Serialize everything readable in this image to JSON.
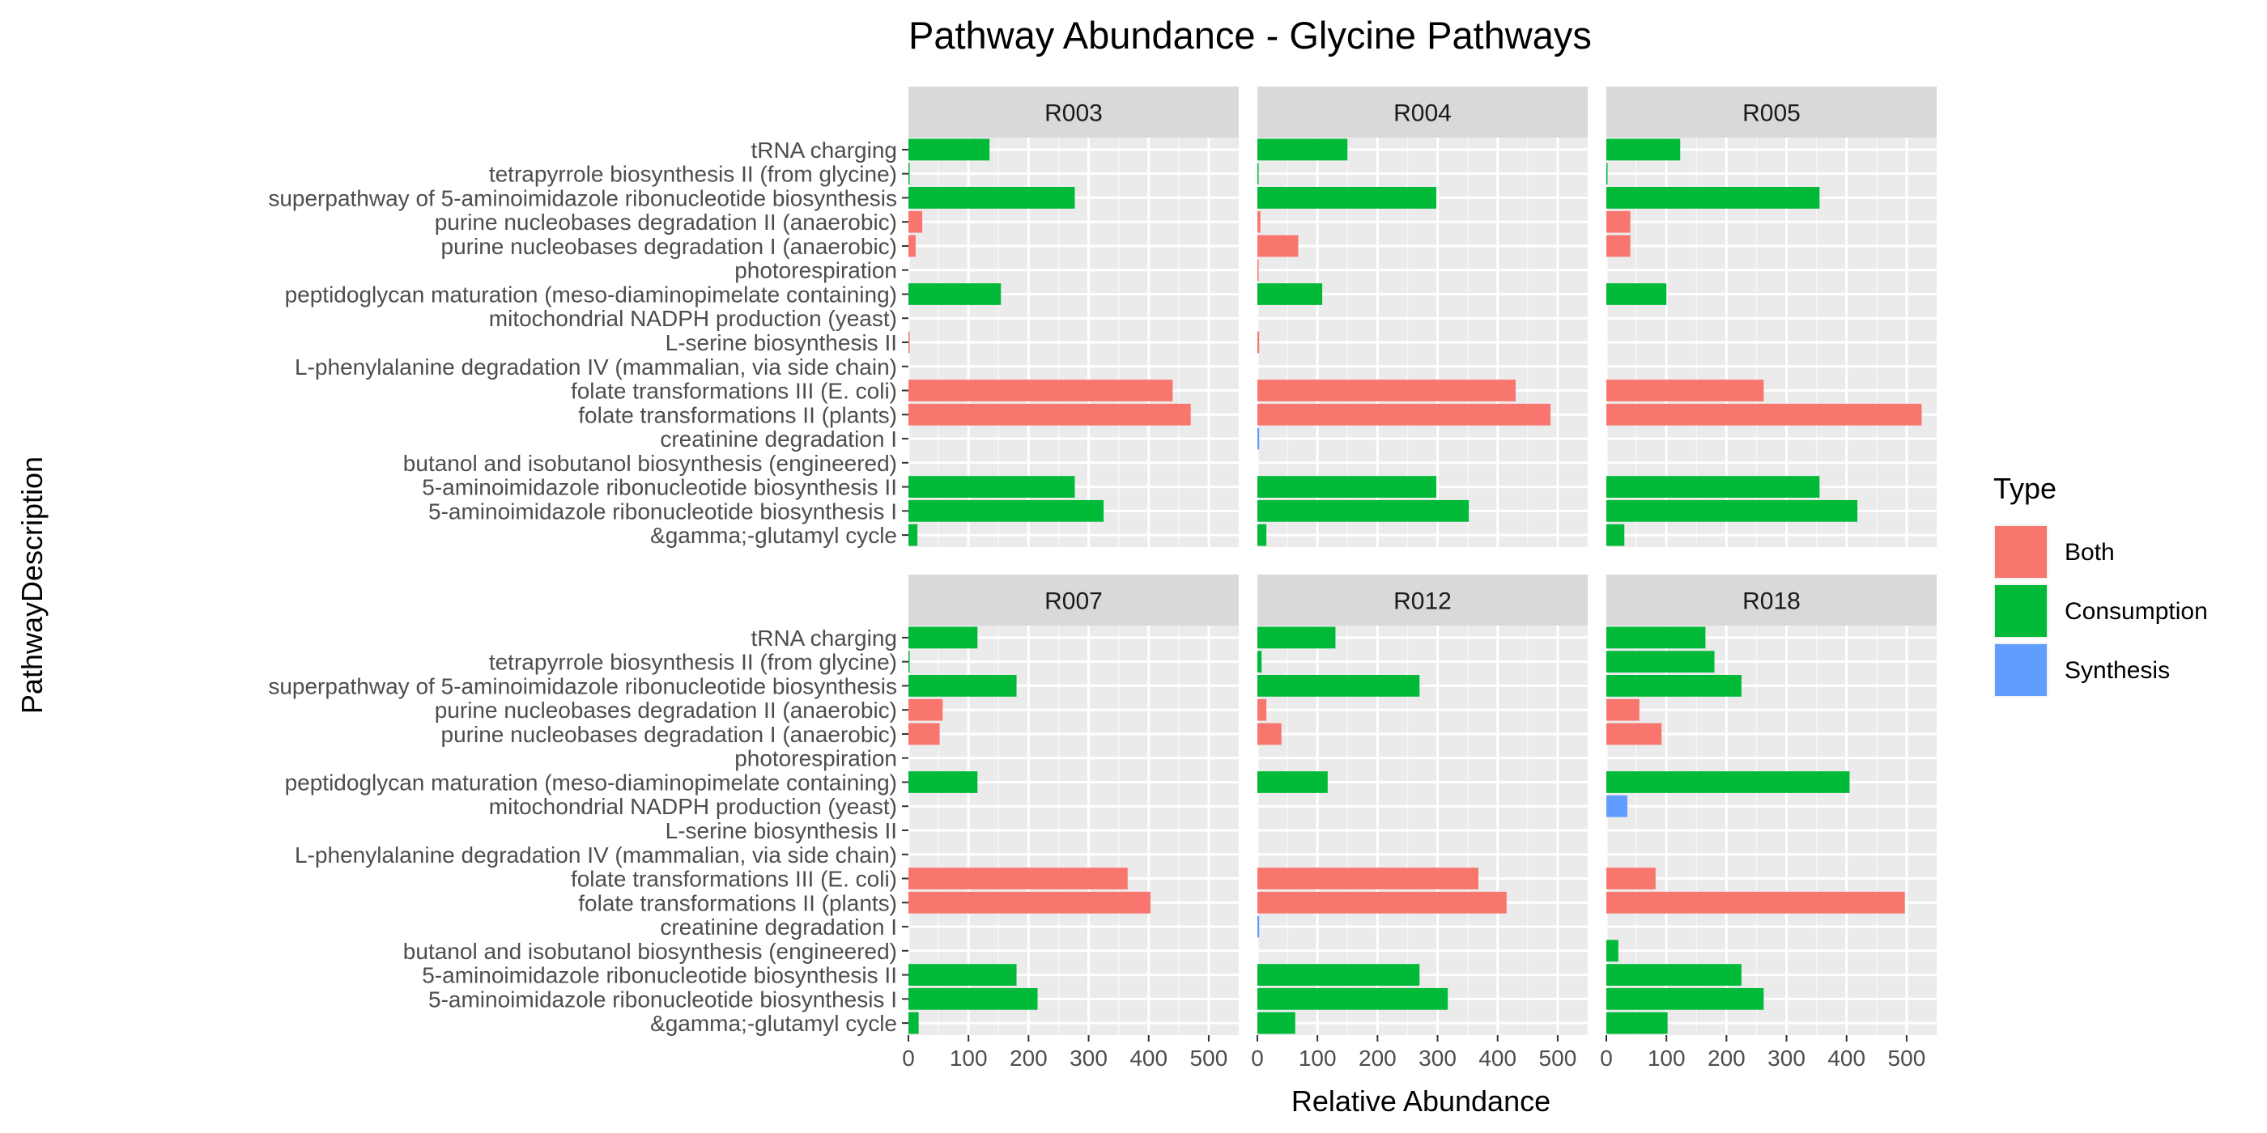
{
  "chart_data": {
    "type": "bar",
    "orientation": "horizontal",
    "title": "Pathway Abundance - Glycine Pathways",
    "xlabel": "Relative Abundance",
    "ylabel": "PathwayDescription",
    "xlim": [
      0,
      550
    ],
    "x_ticks": [
      0,
      100,
      200,
      300,
      400,
      500
    ],
    "grid": true,
    "legend_position": "right",
    "legend": {
      "title": "Type",
      "entries": [
        {
          "name": "Both",
          "color": "#F8766D"
        },
        {
          "name": "Consumption",
          "color": "#00BA38"
        },
        {
          "name": "Synthesis",
          "color": "#619CFF"
        }
      ]
    },
    "categories": [
      "tRNA charging",
      "tetrapyrrole biosynthesis II (from glycine)",
      "superpathway of 5-aminoimidazole ribonucleotide biosynthesis",
      "purine nucleobases degradation II (anaerobic)",
      "purine nucleobases degradation I (anaerobic)",
      "photorespiration",
      "peptidoglycan maturation (meso-diaminopimelate containing)",
      "mitochondrial NADPH production (yeast)",
      "L-serine biosynthesis II",
      "L-phenylalanine degradation IV (mammalian, via side chain)",
      "folate transformations III (E. coli)",
      "folate transformations II (plants)",
      "creatinine degradation I",
      "butanol and isobutanol biosynthesis (engineered)",
      "5-aminoimidazole ribonucleotide biosynthesis II",
      "5-aminoimidazole ribonucleotide biosynthesis I",
      "&gamma;-glutamyl cycle"
    ],
    "category_types": [
      "Consumption",
      "Consumption",
      "Consumption",
      "Both",
      "Both",
      "Both",
      "Consumption",
      "Synthesis",
      "Both",
      "Both",
      "Both",
      "Both",
      "Synthesis",
      "Consumption",
      "Consumption",
      "Consumption",
      "Consumption"
    ],
    "facets": [
      {
        "label": "R003",
        "values": [
          135,
          2,
          277,
          23,
          12,
          0,
          154,
          0,
          1,
          0,
          440,
          470,
          0,
          0,
          277,
          325,
          15
        ]
      },
      {
        "label": "R004",
        "values": [
          150,
          2,
          298,
          5,
          68,
          1,
          108,
          0,
          3,
          0,
          430,
          488,
          3,
          0,
          298,
          352,
          15
        ]
      },
      {
        "label": "R005",
        "values": [
          123,
          2,
          355,
          40,
          40,
          0,
          100,
          0,
          0,
          0,
          262,
          525,
          0,
          0,
          355,
          418,
          30
        ]
      },
      {
        "label": "R007",
        "values": [
          115,
          2,
          180,
          57,
          52,
          0,
          115,
          0,
          0,
          0,
          365,
          403,
          0,
          0,
          180,
          215,
          17
        ]
      },
      {
        "label": "R012",
        "values": [
          130,
          7,
          270,
          15,
          40,
          0,
          117,
          0,
          0,
          0,
          368,
          415,
          3,
          0,
          270,
          317,
          63
        ]
      },
      {
        "label": "R018",
        "values": [
          165,
          180,
          225,
          55,
          92,
          0,
          405,
          35,
          0,
          0,
          82,
          497,
          0,
          20,
          225,
          262,
          102
        ]
      }
    ]
  }
}
